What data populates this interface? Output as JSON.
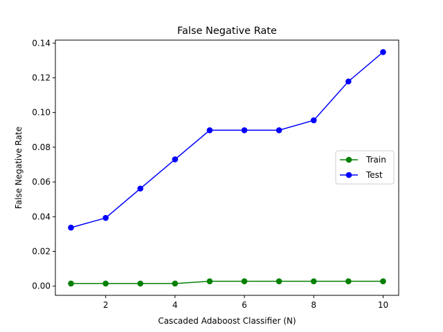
{
  "chart_data": {
    "type": "line",
    "title": "False Negative Rate",
    "xlabel": "Cascaded Adaboost Classifier (N)",
    "ylabel": "False Negative Rate",
    "xlim": [
      0.55,
      10.45
    ],
    "ylim": [
      -0.0053,
      0.1417
    ],
    "x": [
      1,
      2,
      3,
      4,
      5,
      6,
      7,
      8,
      9,
      10
    ],
    "xticks": [
      2,
      4,
      6,
      8,
      10
    ],
    "yticks": [
      0.0,
      0.02,
      0.04,
      0.06,
      0.08,
      0.1,
      0.12,
      0.14
    ],
    "xtick_labels": [
      "2",
      "4",
      "6",
      "8",
      "10"
    ],
    "ytick_labels": [
      "0.00",
      "0.02",
      "0.04",
      "0.06",
      "0.08",
      "0.10",
      "0.12",
      "0.14"
    ],
    "legend_position": "center-right",
    "grid": false,
    "series": [
      {
        "name": "Train",
        "color": "#008000",
        "marker": "circle",
        "values": [
          0.0015,
          0.0015,
          0.0015,
          0.0015,
          0.0028,
          0.0028,
          0.0028,
          0.0028,
          0.0028,
          0.0028
        ]
      },
      {
        "name": "Test",
        "color": "#0000ff",
        "marker": "circle",
        "values": [
          0.0337,
          0.0393,
          0.0562,
          0.073,
          0.0898,
          0.0898,
          0.0898,
          0.0955,
          0.1179,
          0.1348
        ]
      }
    ]
  }
}
